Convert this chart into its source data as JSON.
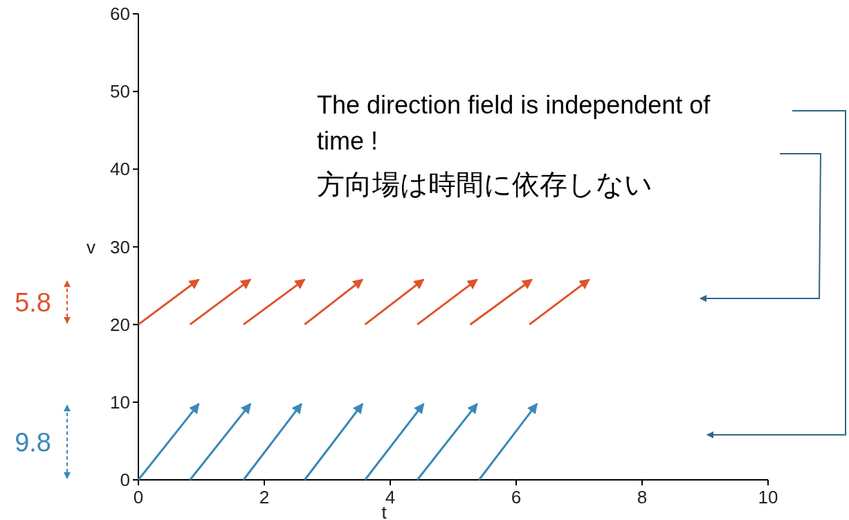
{
  "chart_data": {
    "type": "line",
    "xlabel": "t",
    "ylabel": "v",
    "xlim": [
      0,
      10
    ],
    "ylim": [
      0,
      60
    ],
    "xticks": [
      0,
      2,
      4,
      6,
      8,
      10
    ],
    "yticks": [
      0,
      10,
      20,
      30,
      40,
      50,
      60
    ],
    "grid": false,
    "line_style": "solid",
    "series": [
      {
        "color": "#e0532b",
        "x": [
          0,
          0.96
        ],
        "values": [
          20,
          25.8
        ]
      },
      {
        "color": "#e0532b",
        "x": [
          0.82,
          1.78
        ],
        "values": [
          20,
          25.8
        ]
      },
      {
        "color": "#e0532b",
        "x": [
          1.67,
          2.64
        ],
        "values": [
          20,
          25.8
        ]
      },
      {
        "color": "#e0532b",
        "x": [
          2.64,
          3.56
        ],
        "values": [
          20,
          25.8
        ]
      },
      {
        "color": "#e0532b",
        "x": [
          3.6,
          4.53
        ],
        "values": [
          20,
          25.8
        ]
      },
      {
        "color": "#e0532b",
        "x": [
          4.43,
          5.38
        ],
        "values": [
          20,
          25.8
        ]
      },
      {
        "color": "#e0532b",
        "x": [
          5.27,
          6.25
        ],
        "values": [
          20,
          25.8
        ]
      },
      {
        "color": "#e0532b",
        "x": [
          6.21,
          7.16
        ],
        "values": [
          20,
          25.8
        ]
      },
      {
        "color": "#3b88b8",
        "x": [
          0,
          0.96
        ],
        "values": [
          0,
          9.8
        ]
      },
      {
        "color": "#3b88b8",
        "x": [
          0.82,
          1.78
        ],
        "values": [
          0,
          9.8
        ]
      },
      {
        "color": "#3b88b8",
        "x": [
          1.67,
          2.59
        ],
        "values": [
          0,
          9.8
        ]
      },
      {
        "color": "#3b88b8",
        "x": [
          2.64,
          3.56
        ],
        "values": [
          0,
          9.8
        ]
      },
      {
        "color": "#3b88b8",
        "x": [
          3.6,
          4.53
        ],
        "values": [
          0,
          9.8
        ]
      },
      {
        "color": "#3b88b8",
        "x": [
          4.43,
          5.38
        ],
        "values": [
          0,
          9.8
        ]
      },
      {
        "color": "#3b88b8",
        "x": [
          5.41,
          6.33
        ],
        "values": [
          0,
          9.8
        ]
      }
    ],
    "annotations": [
      "The direction field is independent of time !",
      "方向場は時間に依存しない",
      "5.8",
      "9.8"
    ]
  }
}
